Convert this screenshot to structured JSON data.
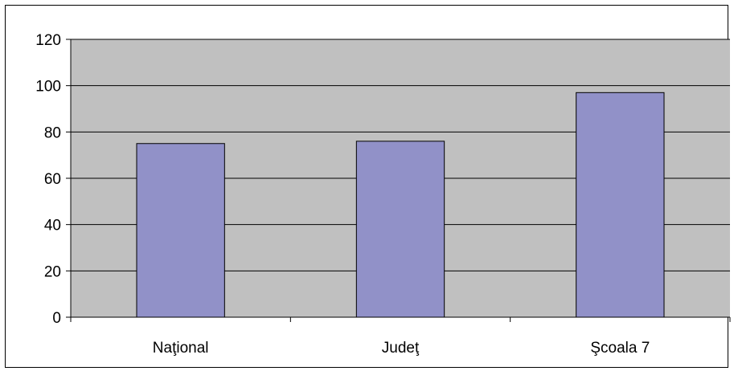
{
  "chart_data": {
    "type": "bar",
    "title": "",
    "xlabel": "",
    "ylabel": "",
    "categories": [
      "Naţional",
      "Judeţ",
      "Şcoala 7"
    ],
    "values": [
      75,
      76,
      97
    ],
    "ylim": [
      0,
      120
    ],
    "yticks": [
      "0",
      "20",
      "40",
      "60",
      "80",
      "100",
      "120"
    ],
    "grid": true,
    "legend": "none",
    "colors": {
      "plot_background": "#c0c0c0",
      "bar_fill": "#9191c8",
      "bar_stroke": "#000000",
      "gridline": "#000000"
    }
  }
}
